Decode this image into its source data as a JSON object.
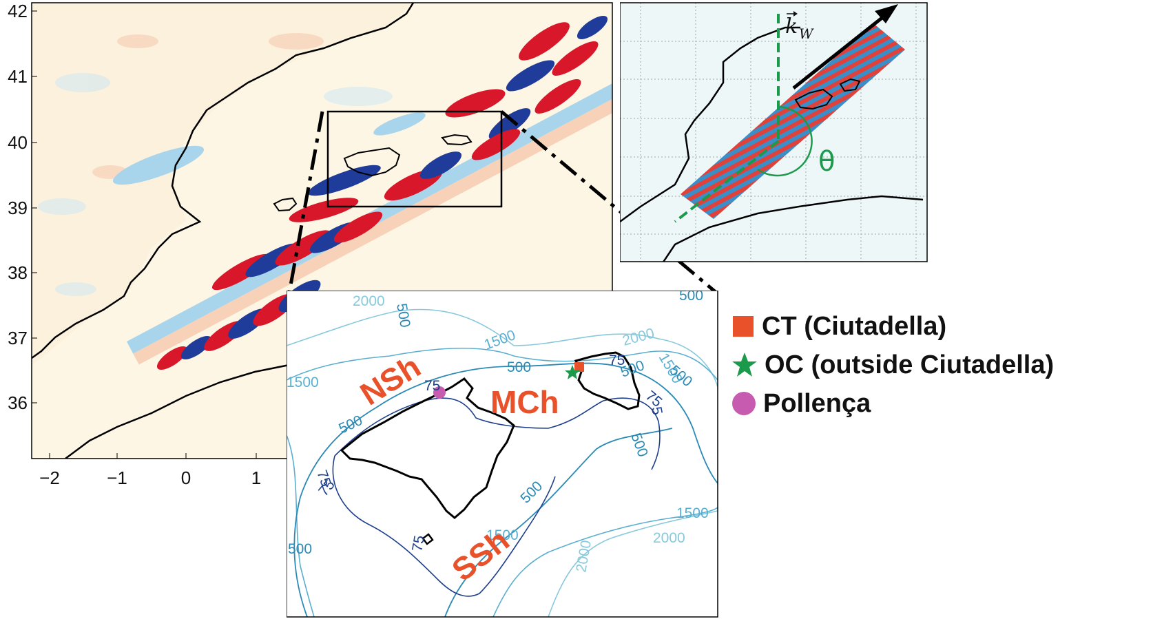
{
  "main_map": {
    "y_ticks": [
      "42",
      "41",
      "40",
      "39",
      "38",
      "37",
      "36"
    ],
    "x_ticks": [
      "−2",
      "−1",
      "0",
      "1"
    ]
  },
  "wave_inset": {
    "vector_label": "k",
    "vector_subscript": "W",
    "angle_label": "θ"
  },
  "bathy_inset": {
    "regions": [
      "NSh",
      "MCh",
      "SSh"
    ],
    "contour_labels": [
      "2000",
      "500",
      "1500",
      "2000",
      "1500",
      "500",
      "75",
      "500",
      "1500",
      "75",
      "500",
      "75",
      "500",
      "75",
      "500",
      "75",
      "5",
      "500",
      "500",
      "75",
      "1500",
      "2000",
      "1500",
      "2000",
      "500"
    ]
  },
  "legend": {
    "items": [
      {
        "label": "CT (Ciutadella)",
        "marker": "square",
        "color": "#e8512a"
      },
      {
        "label": "OC (outside Ciutadella)",
        "marker": "star",
        "color": "#1a9a4a"
      },
      {
        "label": "Pollença",
        "marker": "circle",
        "color": "#c65bb0"
      }
    ]
  },
  "colors": {
    "positive": "#d8182a",
    "negative": "#1f3c9a",
    "light_pos": "#f7d2b8",
    "light_neg": "#a9d5ec",
    "background": "#fdf6e4",
    "contour_deep": "#88c9dc",
    "contour_mid": "#2a8ab5",
    "contour_shallow": "#1d3f8c",
    "annotation_green": "#1a9a4a",
    "region_label": "#e8512a"
  }
}
